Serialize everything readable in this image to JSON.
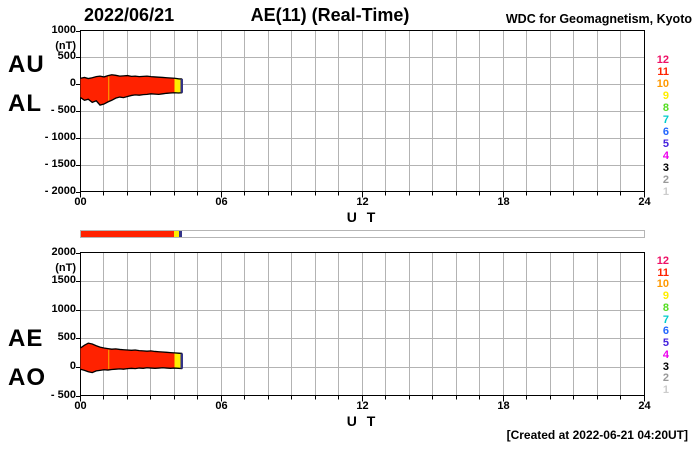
{
  "header": {
    "date": "2022/06/21",
    "title": "AE(11) (Real-Time)",
    "source": "WDC for Geomagnetism, Kyoto"
  },
  "footer": {
    "created": "[Created at 2022-06-21 04:20UT]"
  },
  "station_count_legend": {
    "position": "right",
    "items": [
      {
        "label": "12",
        "color": "#ee1166"
      },
      {
        "label": "11",
        "color": "#ff2200"
      },
      {
        "label": "10",
        "color": "#ff9900"
      },
      {
        "label": "9",
        "color": "#ffee00"
      },
      {
        "label": "8",
        "color": "#55dd22"
      },
      {
        "label": "7",
        "color": "#00cccc"
      },
      {
        "label": "6",
        "color": "#2266ff"
      },
      {
        "label": "5",
        "color": "#4422dd"
      },
      {
        "label": "4",
        "color": "#ee00ee"
      },
      {
        "label": "3",
        "color": "#000000"
      },
      {
        "label": "2",
        "color": "#999999"
      },
      {
        "label": "1",
        "color": "#cccccc"
      }
    ]
  },
  "availability_bar": {
    "xlim": [
      0,
      24
    ],
    "border_color": "#b5b5b5",
    "segments": [
      {
        "start": 0,
        "end": 3.95,
        "color": "#ff2200"
      },
      {
        "start": 3.95,
        "end": 4.18,
        "color": "#ffee00"
      },
      {
        "start": 4.18,
        "end": 4.32,
        "color": "#333388"
      }
    ]
  },
  "chart_data": [
    {
      "type": "area",
      "name": "AU-AL band",
      "side_labels": [
        "AU",
        "AL"
      ],
      "unit": "(nT)",
      "xlabel": "U T",
      "xlim": [
        0,
        24
      ],
      "xgrid_step": 1,
      "xticks": [
        {
          "value": 0,
          "label": "00"
        },
        {
          "value": 6,
          "label": "06"
        },
        {
          "value": 12,
          "label": "12"
        },
        {
          "value": 18,
          "label": "18"
        },
        {
          "value": 24,
          "label": "24"
        }
      ],
      "ylim": [
        -2000,
        1000
      ],
      "yticks": [
        {
          "value": 1000,
          "label": "1000"
        },
        {
          "value": 500,
          "label": "500"
        },
        {
          "value": 0,
          "label": "0"
        },
        {
          "value": -500,
          "label": "- 500"
        },
        {
          "value": -1000,
          "label": "- 1000"
        },
        {
          "value": -1500,
          "label": "- 1500"
        },
        {
          "value": -2000,
          "label": "- 2000"
        }
      ],
      "grid_color": "#b3b3b3",
      "axis_color": "#000000",
      "band_fill": "#ff2200",
      "band_edge": "#000000",
      "x_hours": [
        0,
        0.17,
        0.33,
        0.5,
        0.67,
        0.83,
        1,
        1.17,
        1.33,
        1.5,
        1.67,
        1.83,
        2,
        2.17,
        2.33,
        2.5,
        2.67,
        2.83,
        3,
        3.17,
        3.33,
        3.5,
        3.67,
        3.83,
        4,
        4.17,
        4.33
      ],
      "series": [
        {
          "name": "AU",
          "values": [
            110,
            125,
            105,
            120,
            140,
            150,
            135,
            160,
            175,
            165,
            150,
            155,
            160,
            145,
            150,
            140,
            145,
            150,
            140,
            135,
            130,
            125,
            120,
            115,
            110,
            100,
            95
          ]
        },
        {
          "name": "AL",
          "values": [
            -250,
            -300,
            -280,
            -340,
            -310,
            -390,
            -370,
            -330,
            -300,
            -260,
            -240,
            -250,
            -230,
            -210,
            -200,
            -205,
            -195,
            -190,
            -180,
            -185,
            -190,
            -180,
            -170,
            -165,
            -160,
            -165,
            -160
          ]
        }
      ],
      "end_segment": {
        "start_hour": 4.0,
        "color": "#ffee00"
      },
      "end_marker": {
        "hour": 4.33,
        "color": "#333388"
      },
      "artifact_line": {
        "hour": 1.2,
        "color": "#ff9900"
      }
    },
    {
      "type": "area",
      "name": "AE-AO band",
      "side_labels": [
        "AE",
        "AO"
      ],
      "unit": "(nT)",
      "xlabel": "U T",
      "xlim": [
        0,
        24
      ],
      "xgrid_step": 1,
      "xticks": [
        {
          "value": 0,
          "label": "00"
        },
        {
          "value": 6,
          "label": "06"
        },
        {
          "value": 12,
          "label": "12"
        },
        {
          "value": 18,
          "label": "18"
        },
        {
          "value": 24,
          "label": "24"
        }
      ],
      "ylim": [
        -500,
        2000
      ],
      "yticks": [
        {
          "value": 2000,
          "label": "2000"
        },
        {
          "value": 1500,
          "label": "1500"
        },
        {
          "value": 1000,
          "label": "1000"
        },
        {
          "value": 500,
          "label": "500"
        },
        {
          "value": 0,
          "label": "0"
        },
        {
          "value": -500,
          "label": "- 500"
        }
      ],
      "grid_color": "#b3b3b3",
      "axis_color": "#000000",
      "band_fill": "#ff2200",
      "band_edge": "#000000",
      "x_hours": [
        0,
        0.17,
        0.33,
        0.5,
        0.67,
        0.83,
        1,
        1.17,
        1.33,
        1.5,
        1.67,
        1.83,
        2,
        2.17,
        2.33,
        2.5,
        2.67,
        2.83,
        3,
        3.17,
        3.33,
        3.5,
        3.67,
        3.83,
        4,
        4.17,
        4.33
      ],
      "series": [
        {
          "name": "AE",
          "values": [
            330,
            380,
            415,
            400,
            370,
            345,
            330,
            320,
            310,
            315,
            305,
            300,
            295,
            290,
            295,
            285,
            280,
            275,
            280,
            270,
            265,
            260,
            255,
            250,
            245,
            240,
            235
          ]
        },
        {
          "name": "AO",
          "values": [
            -40,
            -60,
            -85,
            -100,
            -70,
            -60,
            -50,
            -55,
            -45,
            -40,
            -35,
            -40,
            -30,
            -25,
            -30,
            -20,
            -25,
            -15,
            -20,
            -25,
            -20,
            -15,
            -20,
            -25,
            -20,
            -25,
            -30
          ]
        }
      ],
      "end_segment": {
        "start_hour": 4.0,
        "color": "#ffee00"
      },
      "end_marker": {
        "hour": 4.33,
        "color": "#333388"
      },
      "artifact_line": {
        "hour": 1.2,
        "color": "#ff9900"
      }
    }
  ]
}
